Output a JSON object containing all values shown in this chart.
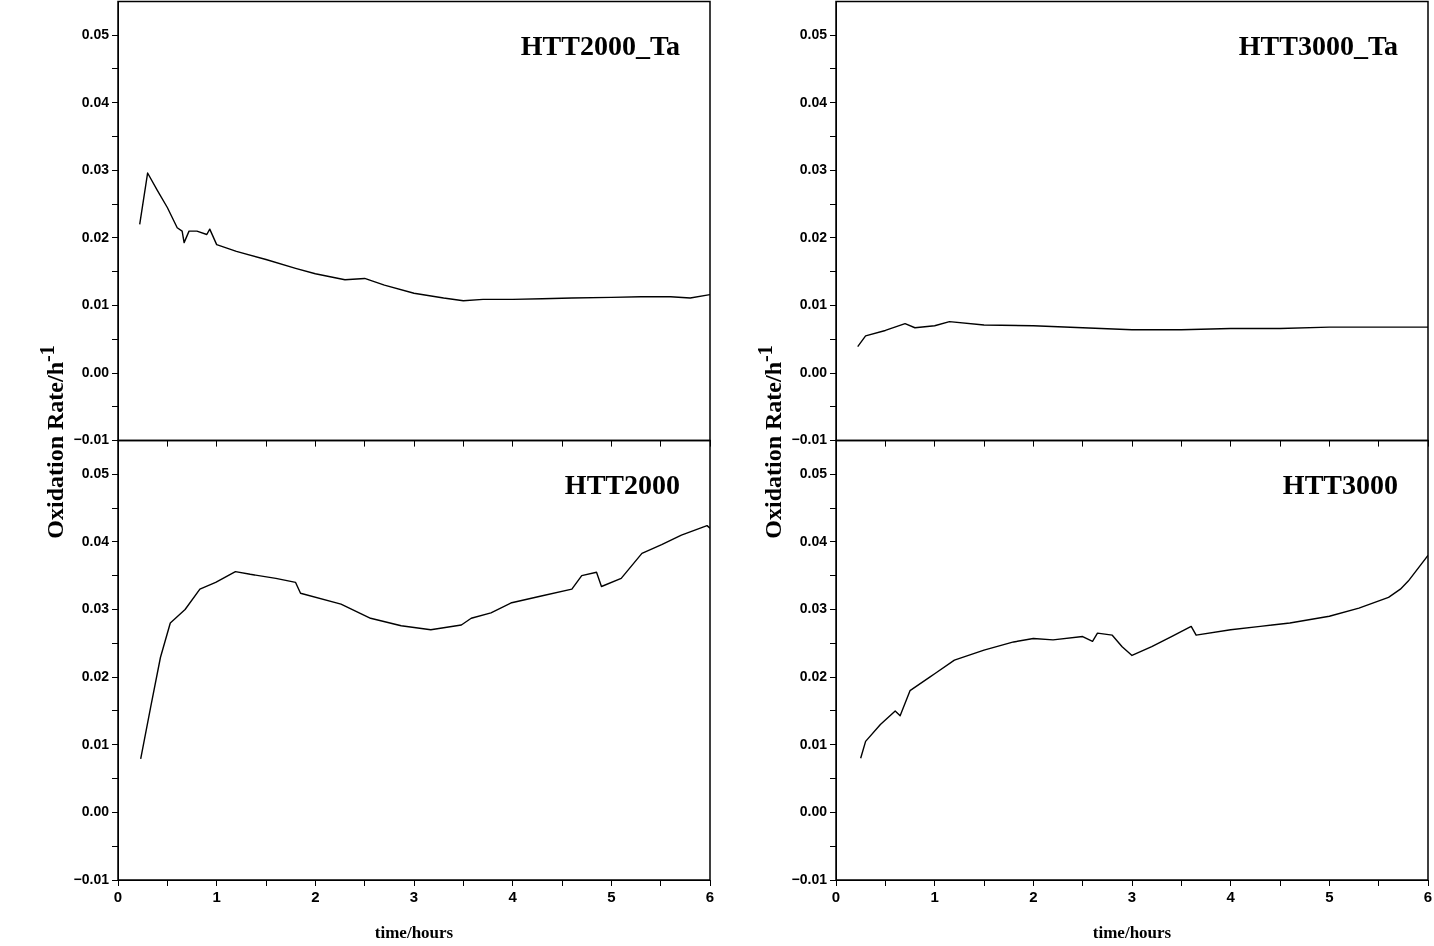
{
  "chart_data": [
    {
      "type": "line",
      "title": "HTT2000_Ta",
      "ylabel": "Oxidation Rate/h$^{-1}$",
      "tick_labels": "y",
      "xlim": [
        0,
        6
      ],
      "xticks": [
        0,
        {
          "value": 0.5,
          "label": null
        },
        1,
        {
          "value": 1.5,
          "label": null
        },
        2,
        {
          "value": 2.5,
          "label": null
        },
        3,
        {
          "value": 3.5,
          "label": null
        },
        4,
        {
          "value": 4.5,
          "label": null
        },
        5,
        {
          "value": 5.5,
          "label": null
        },
        6
      ],
      "ylim": [
        -0.01,
        0.055
      ],
      "yticks": [
        {
          "value": -0.01,
          "label": "−0.01"
        },
        {
          "value": -0.005,
          "label": null
        },
        {
          "value": 0,
          "label": "0.00"
        },
        {
          "value": 0.005,
          "label": null
        },
        {
          "value": 0.01,
          "label": "0.01"
        },
        {
          "value": 0.015,
          "label": null
        },
        {
          "value": 0.02,
          "label": "0.02"
        },
        {
          "value": 0.025,
          "label": null
        },
        {
          "value": 0.03,
          "label": "0.03"
        },
        {
          "value": 0.035,
          "label": null
        },
        {
          "value": 0.04,
          "label": "0.04"
        },
        {
          "value": 0.045,
          "label": null
        },
        {
          "value": 0.05,
          "label": "0.05"
        }
      ],
      "marker": "none",
      "x": [
        0.22,
        0.3,
        0.4,
        0.5,
        0.6,
        0.65,
        0.67,
        0.72,
        0.8,
        0.9,
        0.93,
        1.0,
        1.2,
        1.5,
        1.8,
        2.0,
        2.3,
        2.5,
        2.7,
        3.0,
        3.3,
        3.5,
        3.7,
        4.0,
        4.3,
        4.6,
        5.0,
        5.3,
        5.6,
        5.8,
        6.0
      ],
      "series": [
        {
          "color": "#000000",
          "values": [
            0.022,
            0.0296,
            0.027,
            0.0245,
            0.0215,
            0.021,
            0.0193,
            0.021,
            0.021,
            0.0205,
            0.0213,
            0.019,
            0.018,
            0.0168,
            0.0155,
            0.0147,
            0.0138,
            0.014,
            0.013,
            0.0118,
            0.0111,
            0.0107,
            0.0109,
            0.0109,
            0.011,
            0.0111,
            0.0112,
            0.0113,
            0.0113,
            0.0111,
            0.0116
          ]
        }
      ]
    },
    {
      "type": "line",
      "title": "HTT3000_Ta",
      "ylabel": "Oxidation Rate/h$^{-1}$",
      "tick_labels": "y",
      "xlim": [
        0,
        6
      ],
      "xticks": [
        0,
        {
          "value": 0.5,
          "label": null
        },
        1,
        {
          "value": 1.5,
          "label": null
        },
        2,
        {
          "value": 2.5,
          "label": null
        },
        3,
        {
          "value": 3.5,
          "label": null
        },
        4,
        {
          "value": 4.5,
          "label": null
        },
        5,
        {
          "value": 5.5,
          "label": null
        },
        6
      ],
      "ylim": [
        -0.01,
        0.055
      ],
      "yticks": [
        {
          "value": -0.01,
          "label": "−0.01"
        },
        {
          "value": -0.005,
          "label": null
        },
        {
          "value": 0,
          "label": "0.00"
        },
        {
          "value": 0.005,
          "label": null
        },
        {
          "value": 0.01,
          "label": "0.01"
        },
        {
          "value": 0.015,
          "label": null
        },
        {
          "value": 0.02,
          "label": "0.02"
        },
        {
          "value": 0.025,
          "label": null
        },
        {
          "value": 0.03,
          "label": "0.03"
        },
        {
          "value": 0.035,
          "label": null
        },
        {
          "value": 0.04,
          "label": "0.04"
        },
        {
          "value": 0.045,
          "label": null
        },
        {
          "value": 0.05,
          "label": "0.05"
        }
      ],
      "marker": "none",
      "x": [
        0.22,
        0.3,
        0.5,
        0.7,
        0.8,
        1.0,
        1.15,
        1.5,
        2.0,
        2.5,
        3.0,
        3.5,
        4.0,
        4.5,
        5.0,
        5.5,
        6.0
      ],
      "series": [
        {
          "color": "#000000",
          "values": [
            0.0039,
            0.0055,
            0.0063,
            0.0073,
            0.0067,
            0.007,
            0.0076,
            0.0071,
            0.007,
            0.0067,
            0.0064,
            0.0064,
            0.0066,
            0.0066,
            0.0068,
            0.0068,
            0.0068
          ]
        }
      ]
    },
    {
      "type": "line",
      "title": "HTT2000",
      "xlabel": "time/hours",
      "xlim": [
        0,
        6
      ],
      "xticks": [
        0,
        {
          "value": 0.5,
          "label": null
        },
        1,
        {
          "value": 1.5,
          "label": null
        },
        2,
        {
          "value": 2.5,
          "label": null
        },
        3,
        {
          "value": 3.5,
          "label": null
        },
        4,
        {
          "value": 4.5,
          "label": null
        },
        5,
        {
          "value": 5.5,
          "label": null
        },
        6
      ],
      "ylim": [
        -0.01,
        0.055
      ],
      "yticks": [
        {
          "value": -0.01,
          "label": "−0.01"
        },
        {
          "value": -0.005,
          "label": null
        },
        {
          "value": 0,
          "label": "0.00"
        },
        {
          "value": 0.005,
          "label": null
        },
        {
          "value": 0.01,
          "label": "0.01"
        },
        {
          "value": 0.015,
          "label": null
        },
        {
          "value": 0.02,
          "label": "0.02"
        },
        {
          "value": 0.025,
          "label": null
        },
        {
          "value": 0.03,
          "label": "0.03"
        },
        {
          "value": 0.035,
          "label": null
        },
        {
          "value": 0.04,
          "label": "0.04"
        },
        {
          "value": 0.045,
          "label": null
        },
        {
          "value": 0.05,
          "label": "0.05"
        }
      ],
      "marker": "none",
      "x": [
        0.23,
        0.33,
        0.43,
        0.53,
        0.68,
        0.83,
        0.99,
        1.19,
        1.34,
        1.6,
        1.8,
        1.85,
        2.26,
        2.56,
        2.87,
        3.17,
        3.48,
        3.58,
        3.78,
        3.99,
        4.29,
        4.6,
        4.7,
        4.85,
        4.9,
        5.1,
        5.31,
        5.51,
        5.71,
        5.97,
        6.0
      ],
      "series": [
        {
          "color": "#000000",
          "values": [
            0.0079,
            0.0155,
            0.0229,
            0.028,
            0.03,
            0.033,
            0.034,
            0.0356,
            0.0352,
            0.0346,
            0.034,
            0.0324,
            0.0308,
            0.0287,
            0.0276,
            0.027,
            0.0277,
            0.0287,
            0.0295,
            0.031,
            0.032,
            0.033,
            0.035,
            0.0355,
            0.0334,
            0.0346,
            0.0383,
            0.0396,
            0.041,
            0.0424,
            0.042
          ]
        }
      ]
    },
    {
      "type": "line",
      "title": "HTT3000",
      "xlabel": "time/hours",
      "xlim": [
        0,
        6
      ],
      "xticks": [
        0,
        {
          "value": 0.5,
          "label": null
        },
        1,
        {
          "value": 1.5,
          "label": null
        },
        2,
        {
          "value": 2.5,
          "label": null
        },
        3,
        {
          "value": 3.5,
          "label": null
        },
        4,
        {
          "value": 4.5,
          "label": null
        },
        5,
        {
          "value": 5.5,
          "label": null
        },
        6
      ],
      "ylim": [
        -0.01,
        0.055
      ],
      "yticks": [
        {
          "value": -0.01,
          "label": "−0.01"
        },
        {
          "value": -0.005,
          "label": null
        },
        {
          "value": 0,
          "label": "0.00"
        },
        {
          "value": 0.005,
          "label": null
        },
        {
          "value": 0.01,
          "label": "0.01"
        },
        {
          "value": 0.015,
          "label": null
        },
        {
          "value": 0.02,
          "label": "0.02"
        },
        {
          "value": 0.025,
          "label": null
        },
        {
          "value": 0.03,
          "label": "0.03"
        },
        {
          "value": 0.035,
          "label": null
        },
        {
          "value": 0.04,
          "label": "0.04"
        },
        {
          "value": 0.045,
          "label": null
        },
        {
          "value": 0.05,
          "label": "0.05"
        }
      ],
      "marker": "none",
      "x": [
        0.25,
        0.3,
        0.45,
        0.6,
        0.65,
        0.75,
        0.95,
        1.0,
        1.2,
        1.5,
        1.8,
        2.0,
        2.2,
        2.5,
        2.6,
        2.65,
        2.8,
        2.9,
        3.0,
        3.2,
        3.4,
        3.6,
        3.65,
        4.0,
        4.3,
        4.6,
        5.0,
        5.3,
        5.6,
        5.72,
        5.8,
        6.0
      ],
      "series": [
        {
          "color": "#000000",
          "values": [
            0.008,
            0.0105,
            0.013,
            0.015,
            0.0143,
            0.018,
            0.02,
            0.0205,
            0.0225,
            0.024,
            0.0252,
            0.0257,
            0.0255,
            0.026,
            0.0253,
            0.0265,
            0.0262,
            0.0245,
            0.0232,
            0.0245,
            0.026,
            0.0275,
            0.0262,
            0.027,
            0.0275,
            0.028,
            0.029,
            0.0302,
            0.0318,
            0.033,
            0.0342,
            0.038
          ]
        }
      ]
    }
  ]
}
